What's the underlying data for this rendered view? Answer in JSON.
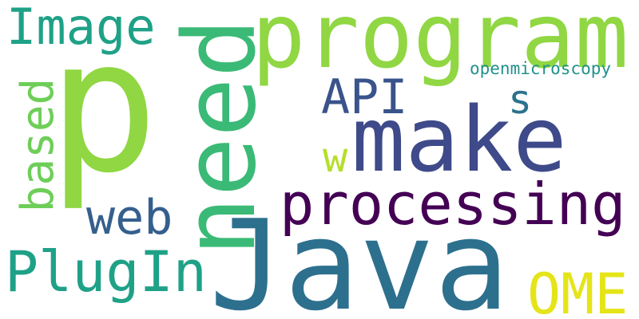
{
  "words": [
    {
      "id": "p",
      "text": "p",
      "color": "#90d743",
      "orientation": "horizontal"
    },
    {
      "id": "program",
      "text": "program",
      "color": "#90d743",
      "orientation": "horizontal"
    },
    {
      "id": "image",
      "text": "Image",
      "color": "#1fa187",
      "orientation": "horizontal"
    },
    {
      "id": "need",
      "text": "need",
      "color": "#3aba76",
      "orientation": "vertical"
    },
    {
      "id": "make",
      "text": "make",
      "color": "#3e4a89",
      "orientation": "horizontal"
    },
    {
      "id": "openmicroscopy",
      "text": "openmicroscopy",
      "color": "#21918c",
      "orientation": "horizontal"
    },
    {
      "id": "api",
      "text": "API",
      "color": "#3a538b",
      "orientation": "horizontal"
    },
    {
      "id": "s",
      "text": "s",
      "color": "#2c728e",
      "orientation": "horizontal"
    },
    {
      "id": "w",
      "text": "w",
      "color": "#b5de2b",
      "orientation": "horizontal"
    },
    {
      "id": "based",
      "text": "based",
      "color": "#6ece58",
      "orientation": "vertical"
    },
    {
      "id": "processing",
      "text": "processing",
      "color": "#440154",
      "orientation": "horizontal"
    },
    {
      "id": "web",
      "text": "web",
      "color": "#355f8d",
      "orientation": "horizontal"
    },
    {
      "id": "java",
      "text": "Java",
      "color": "#2d708e",
      "orientation": "horizontal"
    },
    {
      "id": "plugin",
      "text": "PlugIn",
      "color": "#1fa187",
      "orientation": "horizontal"
    },
    {
      "id": "ome",
      "text": "OME",
      "color": "#e5e419",
      "orientation": "horizontal"
    }
  ]
}
